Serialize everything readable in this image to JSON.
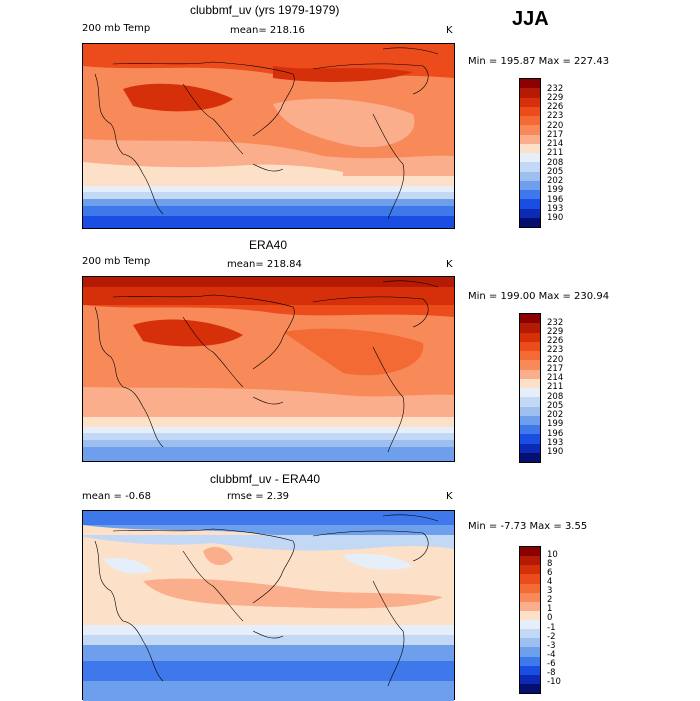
{
  "season": "JJA",
  "panels": [
    {
      "id": "model",
      "title": "clubbmf_uv (yrs 1979-1979)",
      "left_label": "200 mb Temp",
      "center_label": "mean= 218.16",
      "units": "K",
      "minmax": "Min = 195.87 Max = 227.43",
      "colorbar": [
        "232",
        "229",
        "226",
        "223",
        "220",
        "217",
        "214",
        "211",
        "208",
        "205",
        "202",
        "199",
        "196",
        "193",
        "190"
      ],
      "colors": [
        "#8b0000",
        "#b51a04",
        "#d6300b",
        "#ec4c1c",
        "#f46a35",
        "#f88a5a",
        "#fbae8c",
        "#fde0c8",
        "#e6eef9",
        "#c3d8f4",
        "#9dbff0",
        "#6d9fec",
        "#3f78ea",
        "#1a4ee3",
        "#0c2bb4",
        "#050f70"
      ]
    },
    {
      "id": "obs",
      "title": "ERA40",
      "left_label": "200 mb Temp",
      "center_label": "mean= 218.84",
      "units": "K",
      "minmax": "Min = 199.00 Max = 230.94",
      "colorbar": [
        "232",
        "229",
        "226",
        "223",
        "220",
        "217",
        "214",
        "211",
        "208",
        "205",
        "202",
        "199",
        "196",
        "193",
        "190"
      ],
      "colors": [
        "#8b0000",
        "#b51a04",
        "#d6300b",
        "#ec4c1c",
        "#f46a35",
        "#f88a5a",
        "#fbae8c",
        "#fde0c8",
        "#e6eef9",
        "#c3d8f4",
        "#9dbff0",
        "#6d9fec",
        "#3f78ea",
        "#1a4ee3",
        "#0c2bb4",
        "#050f70"
      ]
    },
    {
      "id": "diff",
      "title": "clubbmf_uv - ERA40",
      "left_label": "mean =   -0.68",
      "center_label": "rmse =    2.39",
      "units": "K",
      "minmax": "Min =  -7.73 Max =    3.55",
      "colorbar": [
        "10",
        "8",
        "6",
        "4",
        "3",
        "2",
        "1",
        "0",
        "-1",
        "-2",
        "-3",
        "-4",
        "-6",
        "-8",
        "-10"
      ],
      "colors": [
        "#8b0000",
        "#b51a04",
        "#d6300b",
        "#ec4c1c",
        "#f46a35",
        "#f88a5a",
        "#fbae8c",
        "#fde0c8",
        "#e6eef9",
        "#c3d8f4",
        "#9dbff0",
        "#6d9fec",
        "#3f78ea",
        "#1a4ee3",
        "#0c2bb4",
        "#050f70"
      ]
    }
  ]
}
